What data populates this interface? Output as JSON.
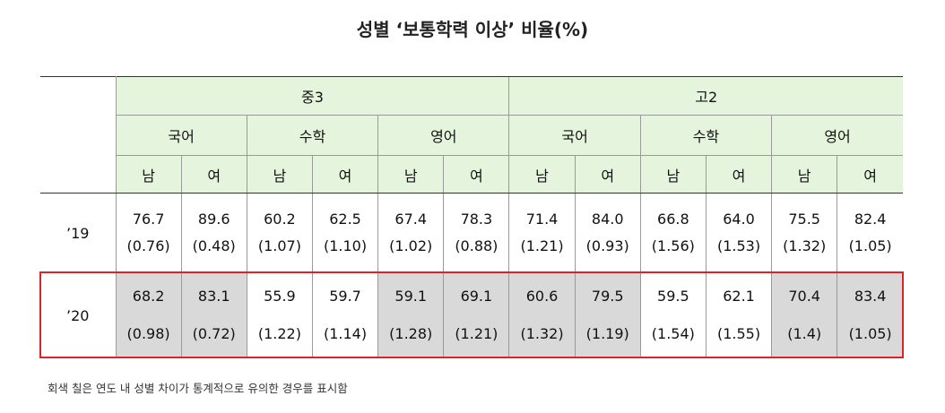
{
  "title": "성별 ‘보통학력 이상’ 비율(%)",
  "chart_data": {
    "type": "table",
    "groups": [
      {
        "label": "중3",
        "subjects": [
          {
            "label": "국어",
            "genders": [
              "남",
              "여"
            ]
          },
          {
            "label": "수학",
            "genders": [
              "남",
              "여"
            ]
          },
          {
            "label": "영어",
            "genders": [
              "남",
              "여"
            ]
          }
        ]
      },
      {
        "label": "고2",
        "subjects": [
          {
            "label": "국어",
            "genders": [
              "남",
              "여"
            ]
          },
          {
            "label": "수학",
            "genders": [
              "남",
              "여"
            ]
          },
          {
            "label": "영어",
            "genders": [
              "남",
              "여"
            ]
          }
        ]
      }
    ],
    "rows": [
      {
        "year": "’19",
        "values": [
          "76.7",
          "89.6",
          "60.2",
          "62.5",
          "67.4",
          "78.3",
          "71.4",
          "84.0",
          "66.8",
          "64.0",
          "75.5",
          "82.4"
        ],
        "se": [
          "(0.76)",
          "(0.48)",
          "(1.07)",
          "(1.10)",
          "(1.02)",
          "(0.88)",
          "(1.21)",
          "(0.93)",
          "(1.56)",
          "(1.53)",
          "(1.32)",
          "(1.05)"
        ],
        "significant": [
          false,
          false,
          false,
          false,
          false,
          false,
          false,
          false,
          false,
          false,
          false,
          false
        ]
      },
      {
        "year": "’20",
        "values": [
          "68.2",
          "83.1",
          "55.9",
          "59.7",
          "59.1",
          "69.1",
          "60.6",
          "79.5",
          "59.5",
          "62.1",
          "70.4",
          "83.4"
        ],
        "se": [
          "(0.98)",
          "(0.72)",
          "(1.22)",
          "(1.14)",
          "(1.28)",
          "(1.21)",
          "(1.32)",
          "(1.19)",
          "(1.54)",
          "(1.55)",
          "(1.4)",
          "(1.05)"
        ],
        "significant": [
          true,
          true,
          false,
          false,
          true,
          true,
          true,
          true,
          false,
          false,
          true,
          true
        ]
      }
    ]
  },
  "colors": {
    "header_bg": "#e5f4dc",
    "shaded_bg": "#d9d9d9",
    "highlight_border": "#d9252a"
  },
  "footnote": "회색 칠은 연도 내 성별 차이가 통계적으로 유의한 경우를 표시함"
}
